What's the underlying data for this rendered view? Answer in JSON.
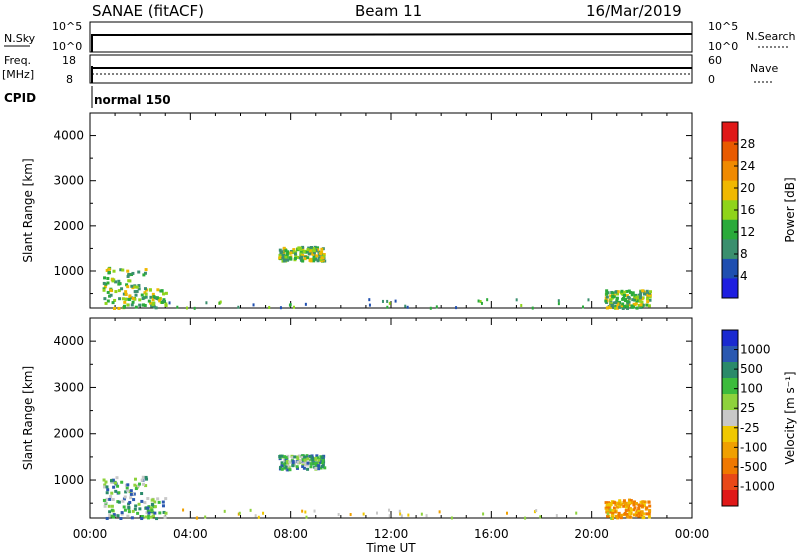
{
  "header": {
    "station": "SANAE (fitACF)",
    "beam": "Beam 11",
    "date": "16/Mar/2019"
  },
  "strips": {
    "nsky_label": "N.Sky",
    "nsky_ticks": [
      "10^5",
      "10^0"
    ],
    "nsearch_label": "N.Search",
    "nsearch_ticks": [
      "10^5",
      "10^0"
    ],
    "freq_label": "Freq.",
    "freq_unit": "[MHz]",
    "freq_ticks": [
      "18",
      "8"
    ],
    "nave_label": "Nave",
    "nave_ticks": [
      "60",
      "0"
    ],
    "cpid_label": "CPID",
    "cpid_value": "normal 150"
  },
  "chart_data": [
    {
      "type": "heatmap",
      "parameter": "Power",
      "ylabel": "Slant Range [km]",
      "y_ticks": [
        1000,
        2000,
        3000,
        4000
      ],
      "ylim": [
        180,
        4500
      ],
      "xlim_hours": [
        0,
        24
      ],
      "colorbar_label": "Power [dB]",
      "colorbar_ticks": [
        "4",
        "8",
        "12",
        "16",
        "20",
        "24",
        "28"
      ],
      "colorbar_colors": [
        "#1f1fe0",
        "#1f4fb0",
        "#3a8f6e",
        "#2aaa3a",
        "#8fd41a",
        "#f0b800",
        "#f08a00",
        "#e85a00",
        "#e01818"
      ],
      "echo_regions": [
        {
          "t_start": 0.5,
          "t_end": 3.0,
          "r_start": 200,
          "r_end": 1100,
          "note": "near-range scatter"
        },
        {
          "t_start": 7.5,
          "t_end": 9.3,
          "r_start": 1250,
          "r_end": 1560,
          "note": "far-range patch"
        },
        {
          "t_start": 20.5,
          "t_end": 22.3,
          "r_start": 200,
          "r_end": 600,
          "note": "evening scatter"
        }
      ]
    },
    {
      "type": "heatmap",
      "parameter": "Velocity",
      "ylabel": "Slant Range [km]",
      "xlabel": "Time UT",
      "x_ticks": [
        "00:00",
        "04:00",
        "08:00",
        "12:00",
        "16:00",
        "20:00",
        "00:00"
      ],
      "y_ticks": [
        1000,
        2000,
        3000,
        4000
      ],
      "ylim": [
        180,
        4500
      ],
      "xlim_hours": [
        0,
        24
      ],
      "colorbar_label": "Velocity [m s⁻¹]",
      "colorbar_ticks": [
        "1000",
        "500",
        "100",
        "25",
        "-25",
        "-100",
        "-500",
        "-1000"
      ],
      "colorbar_colors": [
        "#1a2ad0",
        "#2a58b0",
        "#2a8a6a",
        "#3cbb3c",
        "#8ed23c",
        "#c8c8c8",
        "#f0c800",
        "#f0a000",
        "#f07800",
        "#e84818",
        "#e01818"
      ],
      "echo_regions": [
        {
          "t_start": 0.5,
          "t_end": 3.0,
          "r_start": 200,
          "r_end": 1100,
          "note": "near-range scatter"
        },
        {
          "t_start": 7.5,
          "t_end": 9.3,
          "r_start": 1250,
          "r_end": 1560,
          "note": "far-range patch"
        },
        {
          "t_start": 20.5,
          "t_end": 22.3,
          "r_start": 200,
          "r_end": 600,
          "note": "evening scatter, negative velocity"
        }
      ]
    }
  ]
}
